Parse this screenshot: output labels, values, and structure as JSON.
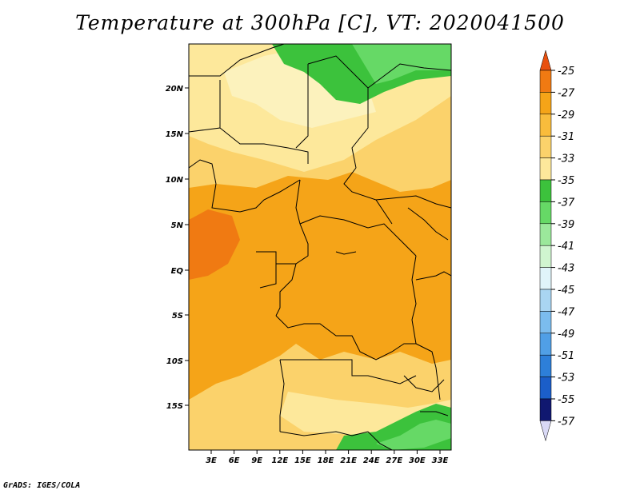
{
  "title": "Temperature at 300hPa [C], VT: 2020041500",
  "credit": "GrADS: IGES/COLA",
  "map": {
    "lat_ticks": [
      "20N",
      "15N",
      "10N",
      "5N",
      "EQ",
      "5S",
      "10S",
      "15S"
    ],
    "lon_ticks": [
      "3E",
      "6E",
      "9E",
      "12E",
      "15E",
      "18E",
      "21E",
      "24E",
      "27E",
      "30E",
      "33E"
    ]
  },
  "colorbar": {
    "labels": [
      "-25",
      "-27",
      "-29",
      "-31",
      "-33",
      "-35",
      "-37",
      "-39",
      "-41",
      "-43",
      "-45",
      "-47",
      "-49",
      "-51",
      "-53",
      "-55",
      "-57"
    ],
    "colors": [
      "#e8500f",
      "#f07a12",
      "#f5a418",
      "#f9bc3c",
      "#fbd26b",
      "#fde89b",
      "#fcf2bd",
      "#3cc23c",
      "#66d966",
      "#9be89b",
      "#d0f5d0",
      "#e0f4fa",
      "#a9d5f2",
      "#7bbcee",
      "#509fe6",
      "#2d7fd9",
      "#1b5ec9",
      "#1540b0",
      "#101870",
      "#d9d9f5"
    ]
  }
}
